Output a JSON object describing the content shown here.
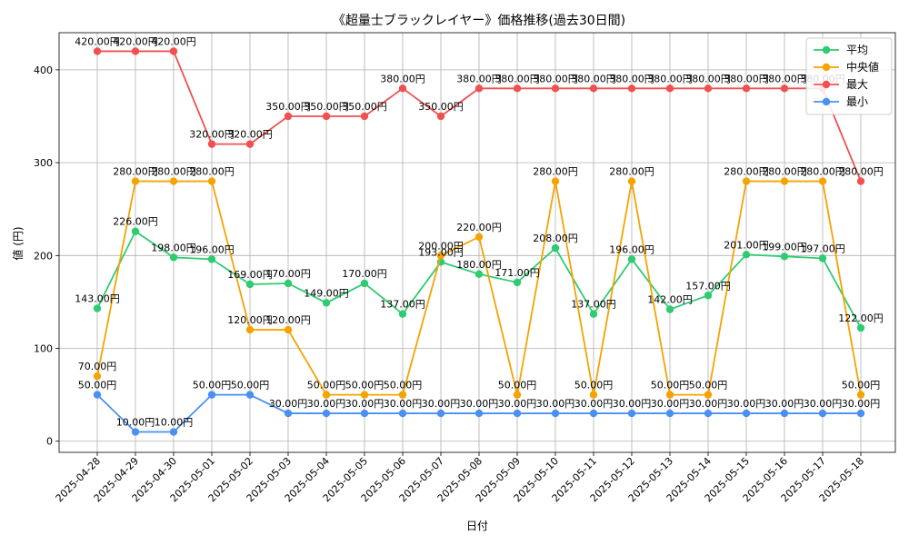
{
  "chart_data": {
    "type": "line",
    "title": "《超量士ブラックレイヤー》価格推移(過去30日間)",
    "xlabel": "日付",
    "ylabel": "値 (円)",
    "ylim": [
      -12,
      440
    ],
    "yticks": [
      0,
      100,
      200,
      300,
      400
    ],
    "grid": true,
    "legend_position": "top-right",
    "value_suffix": ".00円",
    "categories": [
      "2025-04-28",
      "2025-04-29",
      "2025-04-30",
      "2025-05-01",
      "2025-05-02",
      "2025-05-03",
      "2025-05-04",
      "2025-05-05",
      "2025-05-06",
      "2025-05-07",
      "2025-05-08",
      "2025-05-09",
      "2025-05-10",
      "2025-05-11",
      "2025-05-12",
      "2025-05-13",
      "2025-05-14",
      "2025-05-15",
      "2025-05-16",
      "2025-05-17",
      "2025-05-18"
    ],
    "series": [
      {
        "name": "平均",
        "color": "#2ecc71",
        "values": [
          143,
          226,
          198,
          196,
          169,
          170,
          149,
          170,
          137,
          193,
          180,
          171,
          208,
          137,
          196,
          142,
          157,
          201,
          199,
          197,
          122
        ]
      },
      {
        "name": "中央値",
        "color": "#f5a300",
        "values": [
          70,
          280,
          280,
          280,
          120,
          120,
          50,
          50,
          50,
          200,
          220,
          50,
          280,
          50,
          280,
          50,
          50,
          280,
          280,
          280,
          50
        ]
      },
      {
        "name": "最大",
        "color": "#f05050",
        "values": [
          420,
          420,
          420,
          320,
          320,
          350,
          350,
          350,
          380,
          350,
          380,
          380,
          380,
          380,
          380,
          380,
          380,
          380,
          380,
          380,
          280
        ]
      },
      {
        "name": "最小",
        "color": "#4a90f0",
        "values": [
          50,
          10,
          10,
          50,
          50,
          30,
          30,
          30,
          30,
          30,
          30,
          30,
          30,
          30,
          30,
          30,
          30,
          30,
          30,
          30,
          30
        ]
      }
    ]
  }
}
